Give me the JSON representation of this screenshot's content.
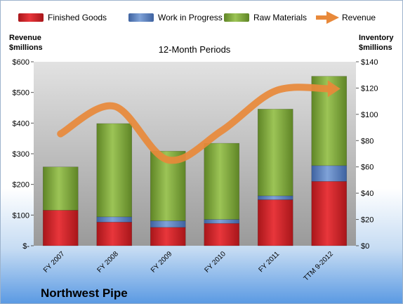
{
  "chart_data": {
    "type": "bar",
    "stacked": true,
    "title": "12-Month Periods",
    "company": "Northwest Pipe",
    "categories": [
      "FY 2007",
      "FY 2008",
      "FY 2009",
      "FY 2010",
      "FY 2011",
      "TTM 9-2012"
    ],
    "left_axis": {
      "label_line1": "Revenue",
      "label_line2": "$millions",
      "ylim": [
        0,
        600
      ],
      "ticks": [
        "$-",
        "$100",
        "$200",
        "$300",
        "$400",
        "$500",
        "$600"
      ]
    },
    "right_axis": {
      "label_line1": "Inventory",
      "label_line2": "$millions",
      "ylim": [
        0,
        140
      ],
      "ticks": [
        "$0",
        "$20",
        "$40",
        "$60",
        "$80",
        "$100",
        "$120",
        "$140"
      ]
    },
    "series": [
      {
        "name": "Finished Goods",
        "axis": "right",
        "color": "#d9262b",
        "values": [
          27,
          18,
          14,
          17,
          35,
          49
        ]
      },
      {
        "name": "Work in Progress",
        "axis": "right",
        "color": "#5f86c2",
        "values": [
          0,
          4,
          5,
          3,
          3,
          12
        ]
      },
      {
        "name": "Raw Materials",
        "axis": "right",
        "color": "#8db445",
        "values": [
          33,
          71,
          53,
          58,
          66,
          68
        ]
      },
      {
        "name": "Revenue",
        "type": "line",
        "axis": "left",
        "color": "#e8893a",
        "values": [
          365,
          455,
          280,
          375,
          505,
          512
        ]
      }
    ],
    "legend_position": "top",
    "grid": false
  },
  "colors": {
    "plot_background_top": "#e2e2e2",
    "plot_background_bottom": "#9a9a9a",
    "revenue_line": "#e8893a"
  }
}
